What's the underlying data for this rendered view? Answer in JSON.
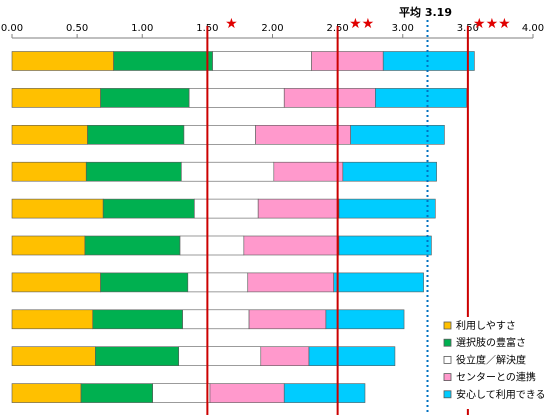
{
  "chart_data": {
    "type": "bar",
    "orientation": "horizontal",
    "stacked": true,
    "xlim": [
      0,
      4
    ],
    "xticks": [
      "0.00",
      "0.50",
      "1.00",
      "1.50",
      "2.00",
      "2.50",
      "3.00",
      "3.50",
      "4.00"
    ],
    "grid": false,
    "legend_position": "bottom-right",
    "series": [
      {
        "name": "利用しやすさ",
        "color": "#ffc000",
        "values": [
          0.78,
          0.68,
          0.58,
          0.57,
          0.7,
          0.56,
          0.68,
          0.62,
          0.64,
          0.53
        ]
      },
      {
        "name": "選択肢の豊富さ",
        "color": "#00b050",
        "values": [
          0.76,
          0.68,
          0.74,
          0.73,
          0.7,
          0.73,
          0.67,
          0.69,
          0.64,
          0.55
        ]
      },
      {
        "name": "役立度／解決度",
        "color": "#ffffff",
        "values": [
          0.76,
          0.73,
          0.55,
          0.71,
          0.49,
          0.49,
          0.46,
          0.51,
          0.63,
          0.44
        ]
      },
      {
        "name": "センターとの連携",
        "color": "#ff99cc",
        "values": [
          0.55,
          0.7,
          0.73,
          0.53,
          0.62,
          0.73,
          0.66,
          0.59,
          0.37,
          0.57
        ]
      },
      {
        "name": "安心して利用できる",
        "color": "#00ccff",
        "values": [
          0.7,
          0.7,
          0.72,
          0.72,
          0.74,
          0.71,
          0.69,
          0.6,
          0.66,
          0.62
        ]
      }
    ],
    "reference_lines": [
      {
        "value": 1.5,
        "style": "solid",
        "color": "#cc0000",
        "label": "★"
      },
      {
        "value": 2.5,
        "style": "solid",
        "color": "#cc0000",
        "label": "★★"
      },
      {
        "value": 3.19,
        "style": "dotted",
        "color": "#0070c0",
        "label": "平均 3.19"
      },
      {
        "value": 3.5,
        "style": "solid",
        "color": "#cc0000",
        "label": "★★★"
      }
    ]
  }
}
